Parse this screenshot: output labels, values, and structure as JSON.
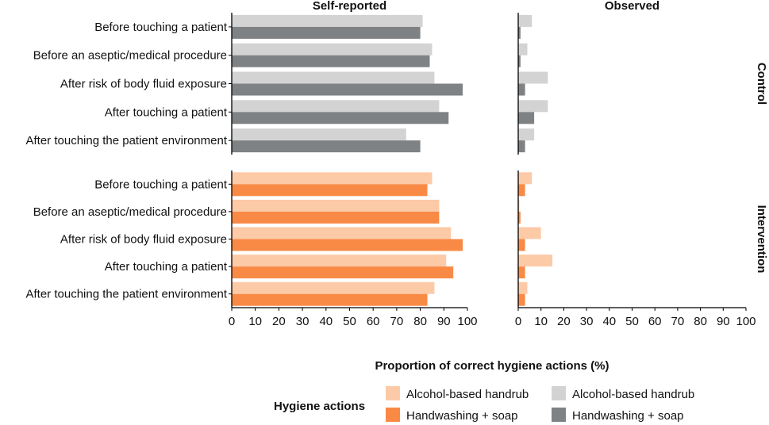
{
  "chart_data": {
    "type": "bar",
    "orientation": "horizontal",
    "facet_columns": [
      "Self-reported",
      "Observed"
    ],
    "facet_rows": [
      "Control",
      "Intervention"
    ],
    "categories": [
      "Before touching a patient",
      "Before an aseptic/medical procedure",
      "After risk of body fluid exposure",
      "After touching a patient",
      "After touching the patient environment"
    ],
    "xlabel": "Proportion of correct hygiene actions (%)",
    "xlim": [
      0,
      100
    ],
    "x_ticks": [
      0,
      10,
      20,
      30,
      40,
      50,
      60,
      70,
      80,
      90,
      100
    ],
    "grid": false,
    "panels": [
      {
        "column": "Self-reported",
        "row": "Control",
        "series": [
          {
            "name": "Alcohol-based handrub",
            "values": [
              81,
              85,
              86,
              88,
              74
            ]
          },
          {
            "name": "Handwashing + soap",
            "values": [
              80,
              84,
              98,
              92,
              80
            ]
          }
        ]
      },
      {
        "column": "Observed",
        "row": "Control",
        "series": [
          {
            "name": "Alcohol-based handrub",
            "values": [
              6,
              4,
              13,
              13,
              7
            ]
          },
          {
            "name": "Handwashing + soap",
            "values": [
              1,
              1,
              3,
              7,
              3
            ]
          }
        ]
      },
      {
        "column": "Self-reported",
        "row": "Intervention",
        "series": [
          {
            "name": "Alcohol-based handrub",
            "values": [
              85,
              88,
              93,
              91,
              86
            ]
          },
          {
            "name": "Handwashing + soap",
            "values": [
              83,
              88,
              98,
              94,
              83
            ]
          }
        ]
      },
      {
        "column": "Observed",
        "row": "Intervention",
        "series": [
          {
            "name": "Alcohol-based handrub",
            "values": [
              6,
              0.5,
              10,
              15,
              4
            ]
          },
          {
            "name": "Handwashing + soap",
            "values": [
              3,
              1,
              3,
              3,
              3
            ]
          }
        ]
      }
    ],
    "legend": {
      "title": "Hygiene actions",
      "position": "bottom",
      "columns": [
        {
          "group": "Intervention",
          "entries": [
            {
              "label": "Alcohol-based handrub",
              "color": "#fdcaa7"
            },
            {
              "label": "Handwashing + soap",
              "color": "#f98a46"
            }
          ]
        },
        {
          "group": "Control",
          "entries": [
            {
              "label": "Alcohol-based handrub",
              "color": "#d3d3d3"
            },
            {
              "label": "Handwashing + soap",
              "color": "#7f8284"
            }
          ]
        }
      ]
    },
    "colors": {
      "control_handrub": "#d3d3d3",
      "control_soap": "#7f8284",
      "intervention_handrub": "#fdcaa7",
      "intervention_soap": "#f98a46"
    }
  }
}
